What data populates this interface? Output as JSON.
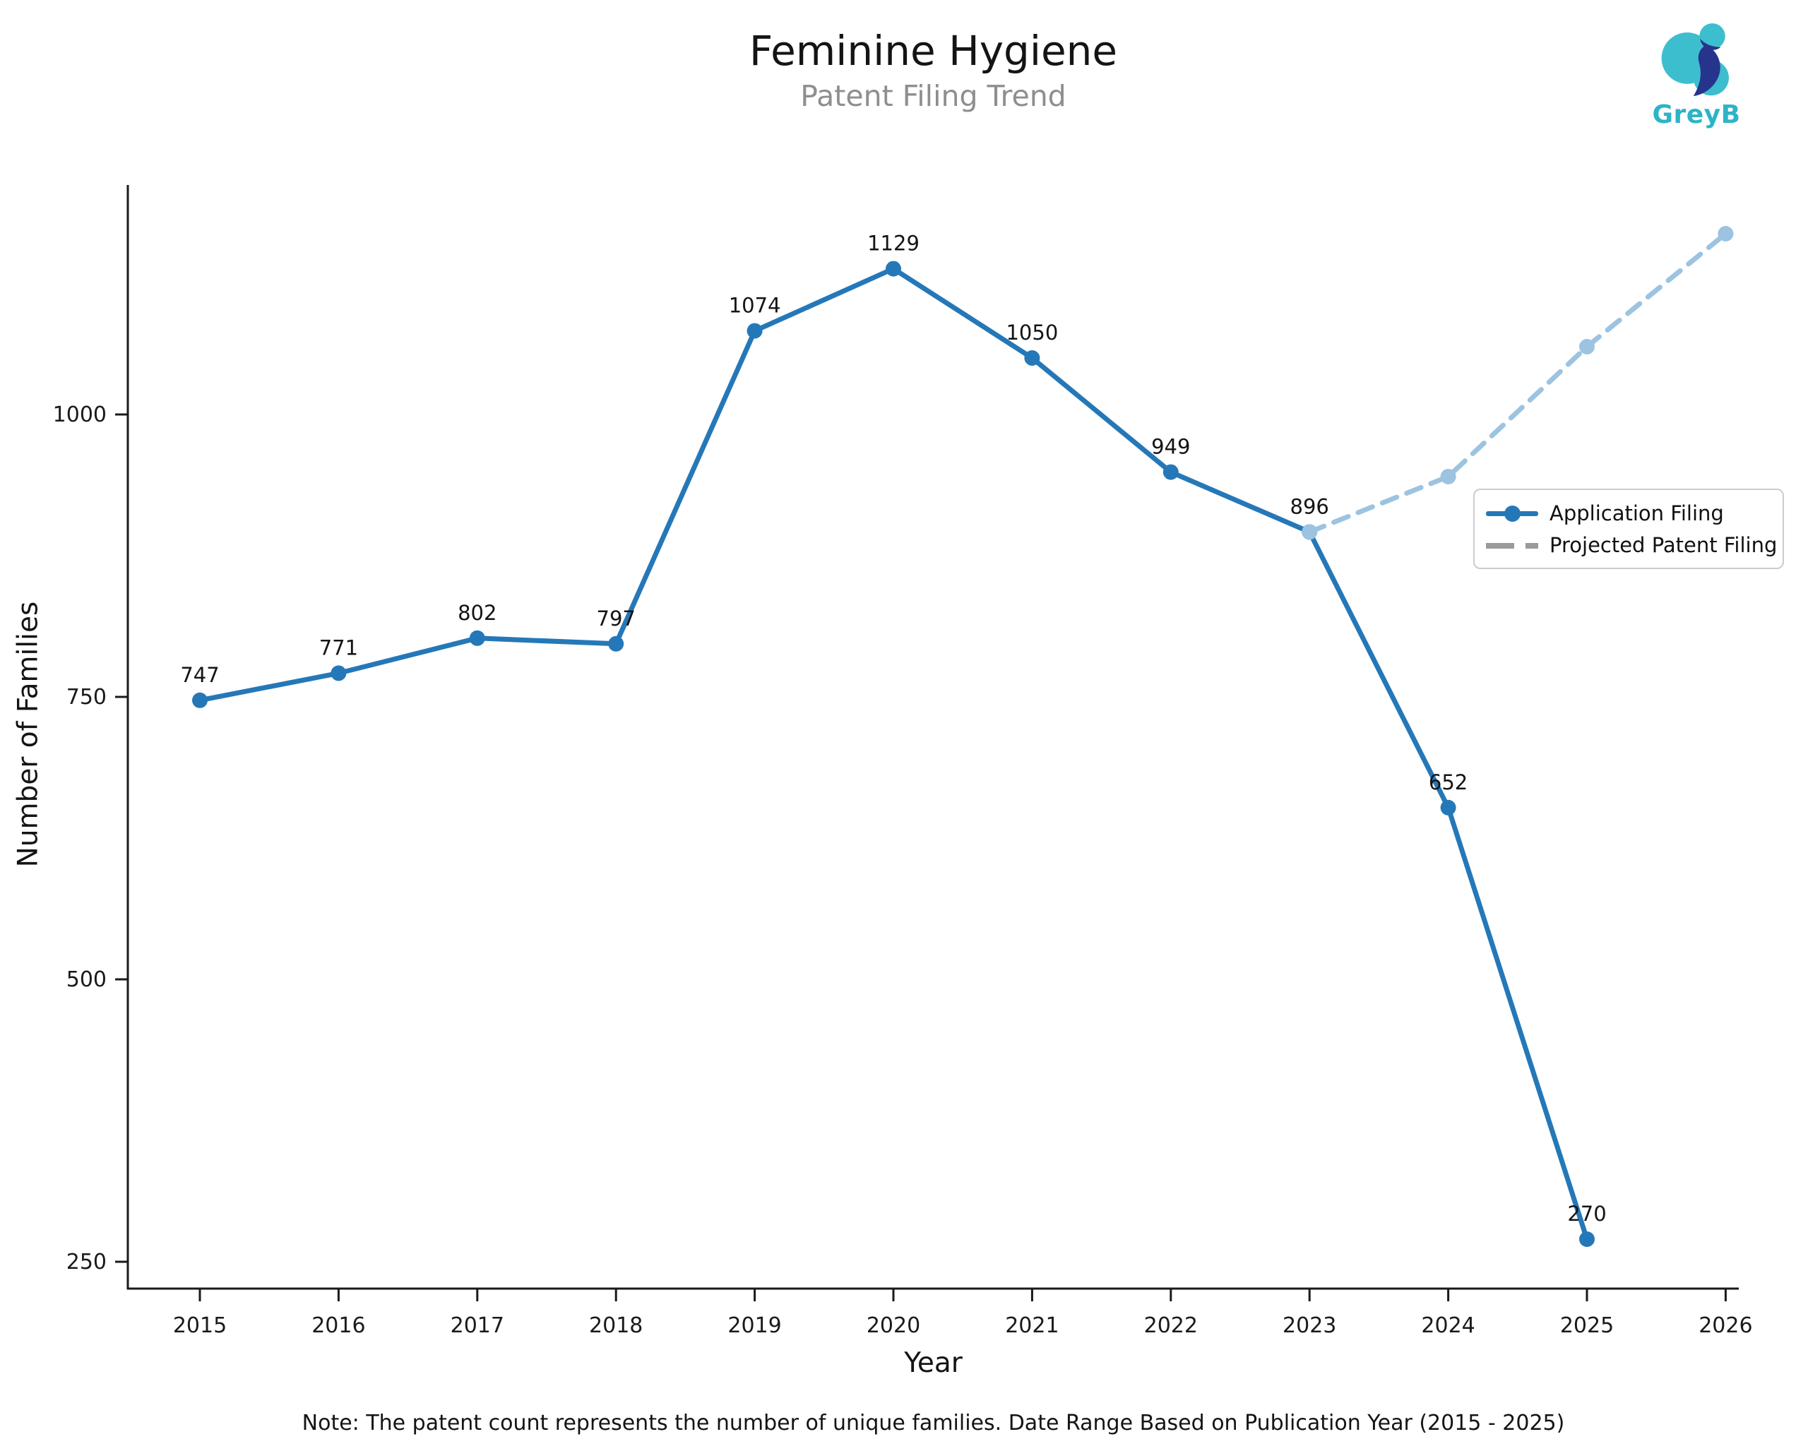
{
  "header": {
    "title": "Feminine Hygiene",
    "subtitle": "Patent Filing Trend",
    "logo_text": "GreyB"
  },
  "chart_data": {
    "type": "line",
    "title": "Feminine Hygiene",
    "subtitle": "Patent Filing Trend",
    "xlabel": "Year",
    "ylabel": "Number of Families",
    "x_ticks": [
      2015,
      2016,
      2017,
      2018,
      2019,
      2020,
      2021,
      2022,
      2023,
      2024,
      2025,
      2026
    ],
    "y_ticks": [
      250,
      500,
      750,
      1000
    ],
    "ylim": [
      225,
      1200
    ],
    "grid": false,
    "legend_position": "center right",
    "series": [
      {
        "name": "Application Filing",
        "style": "solid",
        "color": "#2578b8",
        "marker": "circle",
        "show_point_labels": true,
        "x": [
          2015,
          2016,
          2017,
          2018,
          2019,
          2020,
          2021,
          2022,
          2023,
          2024,
          2025
        ],
        "values": [
          747,
          771,
          802,
          797,
          1074,
          1129,
          1050,
          949,
          896,
          652,
          270
        ]
      },
      {
        "name": "Projected Patent Filing",
        "style": "dashed",
        "color": "#9cc3e0",
        "legend_color": "#9a9a9a",
        "marker": "circle",
        "show_point_labels": false,
        "x": [
          2023,
          2024,
          2025,
          2026
        ],
        "values": [
          896,
          945,
          1060,
          1160
        ]
      }
    ]
  },
  "note": "Note: The patent count represents the number of unique families. Date Range Based on Publication Year (2015 - 2025)",
  "colors": {
    "axis": "#1a1a1a",
    "application_line": "#2578b8",
    "projected_line": "#9cc3e0",
    "legend_dash": "#9a9a9a",
    "subtitle": "#8e8e8e",
    "logo_teal": "#3dbecf",
    "logo_navy": "#27348b"
  }
}
